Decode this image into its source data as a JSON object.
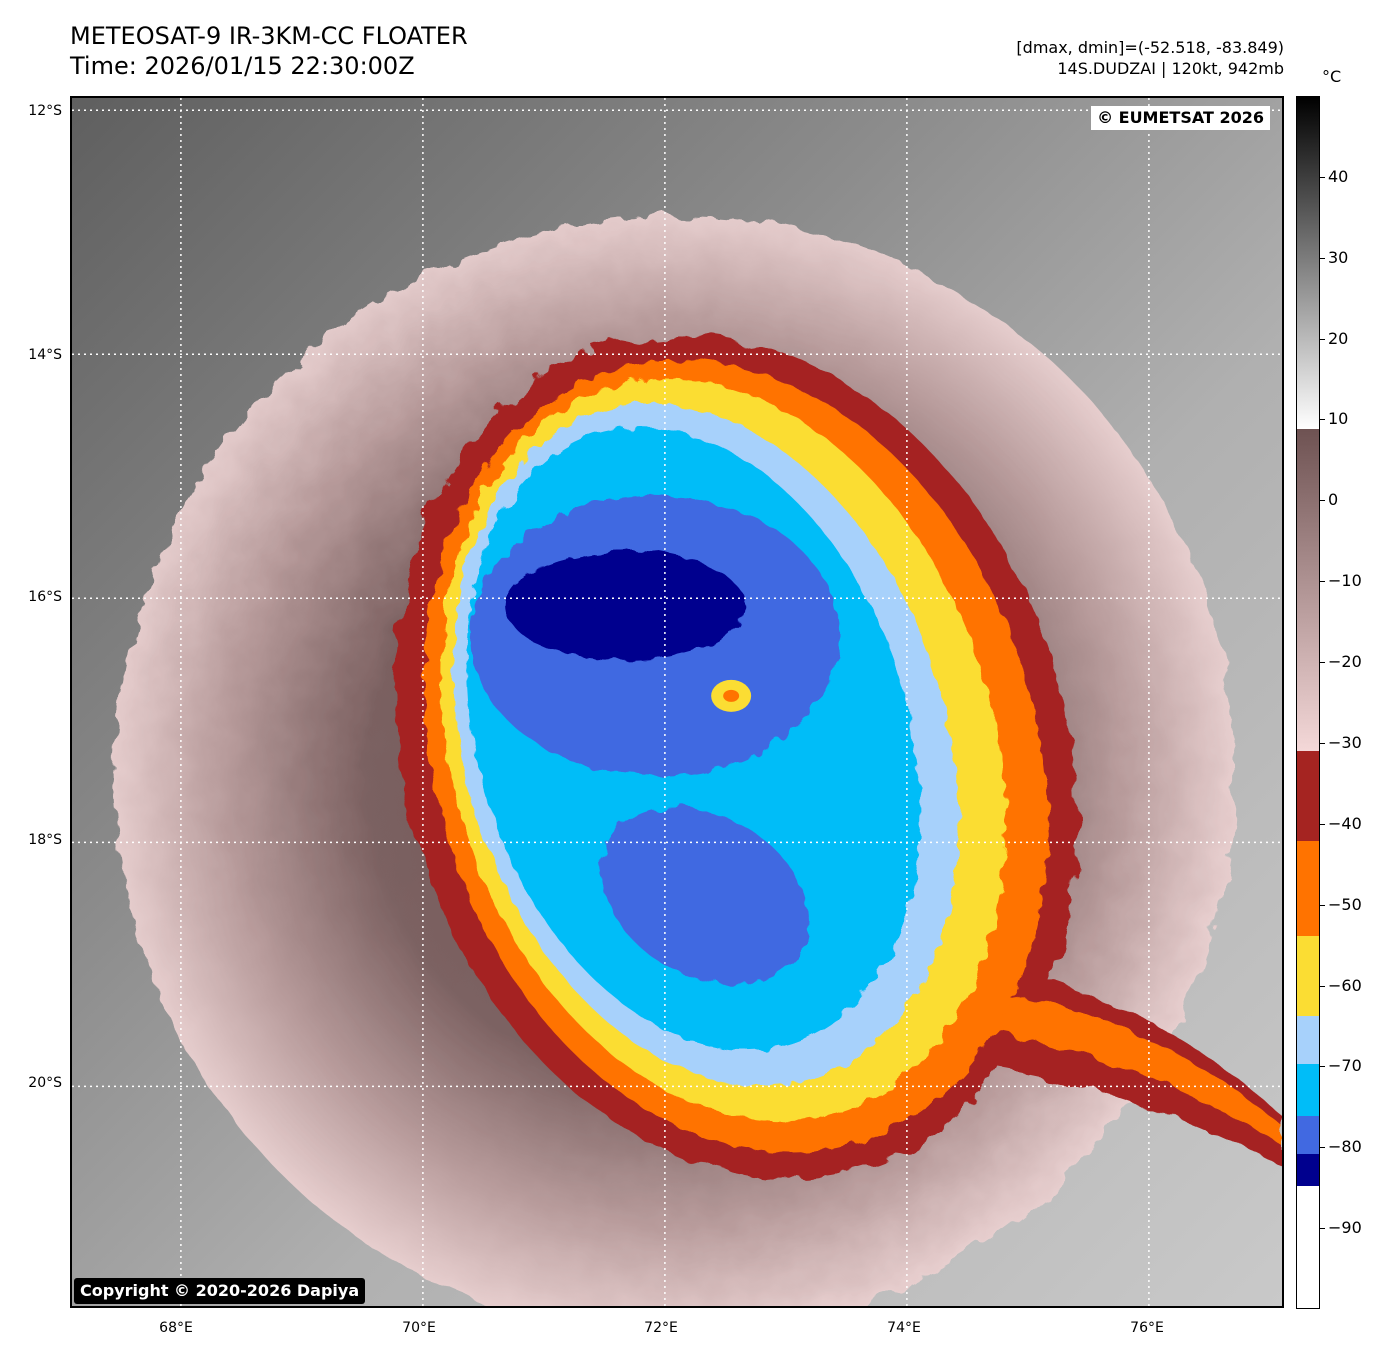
{
  "header": {
    "title_line1": "METEOSAT-9 IR-3KM-CC FLOATER",
    "title_line2": "Time: 2026/01/15 22:30:00Z",
    "info_line1": "[dmax, dmin]=(-52.518, -83.849)",
    "info_line2": "14S.DUDZAI | 120kt, 942mb"
  },
  "map": {
    "credit_top": "© EUMETSAT 2026",
    "credit_bottom": "Copyright © 2020-2026 Dapiya",
    "lat_labels": [
      "12°S",
      "14°S",
      "16°S",
      "18°S",
      "20°S"
    ],
    "lon_labels": [
      "68°E",
      "70°E",
      "72°E",
      "74°E",
      "76°E"
    ],
    "lat_range": [
      -21.8,
      -11.9
    ],
    "lon_range": [
      67.1,
      77.1
    ],
    "storm": {
      "name": "DUDZAI",
      "center_lat": -16.8,
      "center_lon": 72.25
    }
  },
  "colorbar": {
    "unit": "°C",
    "range": [
      -100,
      50
    ],
    "ticks": [
      "40",
      "30",
      "20",
      "10",
      "0",
      "−10",
      "−20",
      "−30",
      "−40",
      "−50",
      "−60",
      "−70",
      "−80",
      "−90"
    ],
    "tick_values": [
      40,
      30,
      20,
      10,
      0,
      -10,
      -20,
      -30,
      -40,
      -50,
      -60,
      -70,
      -80,
      -90
    ],
    "colors": {
      "red": "#a52421",
      "orange": "#ff7300",
      "yellow": "#fbdd33",
      "light_blue": "#a7d1fb",
      "cyan": "#00bdf8",
      "blue": "#4169e1",
      "dark_blue": "#00008e",
      "brown": "#6e5252",
      "pink": "#f4d8d8"
    }
  }
}
